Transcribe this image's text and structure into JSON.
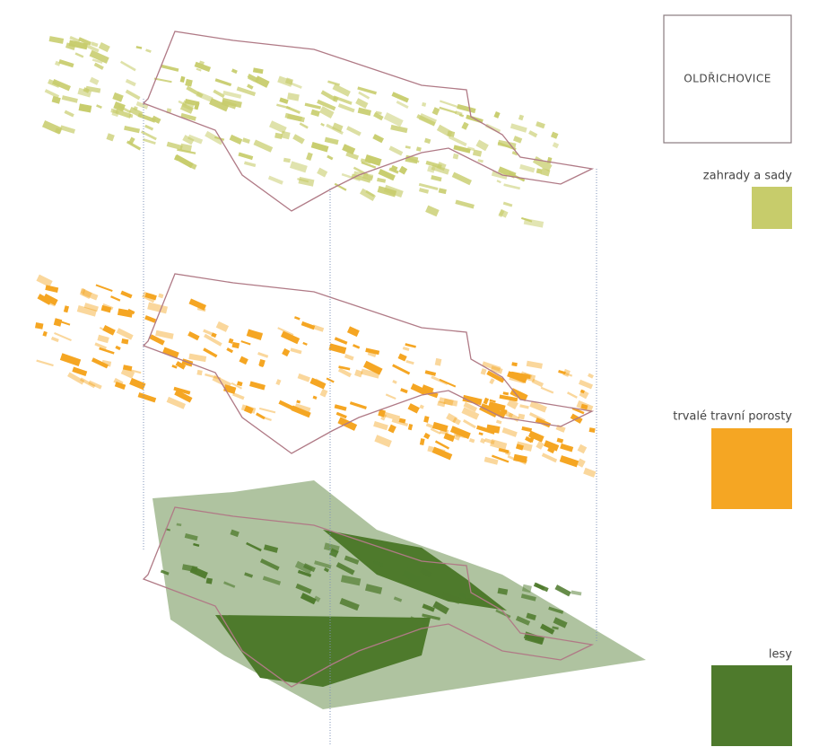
{
  "title": "OLDŘICHOVICE",
  "legend": [
    {
      "label": "zahrady a sady",
      "color": "#c7cc6b"
    },
    {
      "label": "trvalé travní porosty",
      "color": "#f5a623"
    },
    {
      "label": "lesy",
      "color": "#4e7a2c"
    }
  ]
}
